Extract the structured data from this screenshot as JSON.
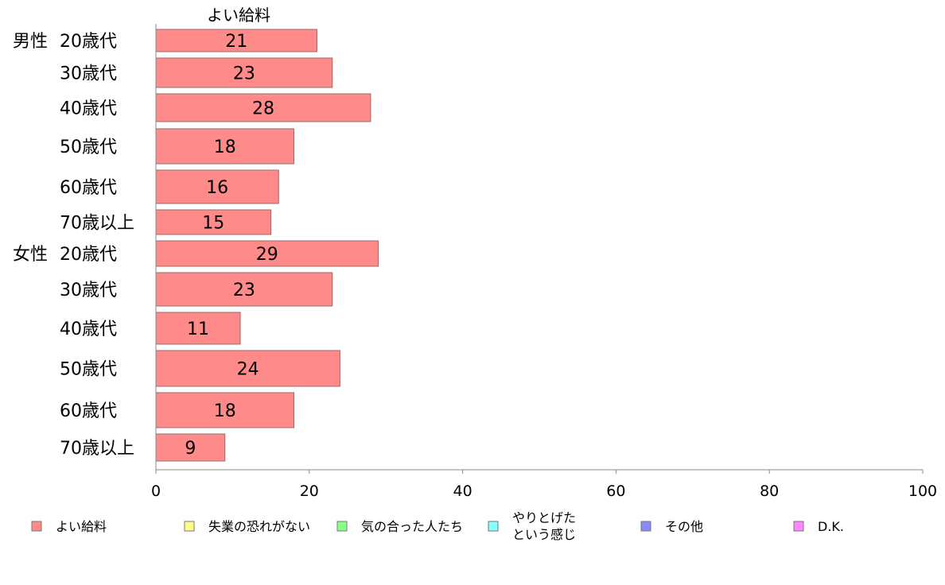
{
  "chart_data": {
    "type": "bar",
    "orientation": "horizontal",
    "title": "",
    "xlim": [
      0,
      100
    ],
    "x_ticks": [
      0,
      20,
      40,
      60,
      80,
      100
    ],
    "grid": false,
    "legend_position": "bottom",
    "series_header": "よい給料",
    "categories": [
      {
        "group": "男性",
        "age": "20歳代",
        "value": 21
      },
      {
        "group": "",
        "age": "30歳代",
        "value": 23
      },
      {
        "group": "",
        "age": "40歳代",
        "value": 28
      },
      {
        "group": "",
        "age": "50歳代",
        "value": 18
      },
      {
        "group": "",
        "age": "60歳代",
        "value": 16
      },
      {
        "group": "",
        "age": "70歳以上",
        "value": 15
      },
      {
        "group": "女性",
        "age": "20歳代",
        "value": 29
      },
      {
        "group": "",
        "age": "30歳代",
        "value": 23
      },
      {
        "group": "",
        "age": "40歳代",
        "value": 11
      },
      {
        "group": "",
        "age": "50歳代",
        "value": 24
      },
      {
        "group": "",
        "age": "60歳代",
        "value": 18
      },
      {
        "group": "",
        "age": "70歳以上",
        "value": 9
      }
    ],
    "series": [
      {
        "name": "よい給料",
        "color": "#ff8a8a"
      },
      {
        "name": "失業の恐れがない",
        "color": "#ffff88"
      },
      {
        "name": "気の合った人たち",
        "color": "#88ff88"
      },
      {
        "name": "やりとげた\nという感じ",
        "color": "#88ffff"
      },
      {
        "name": "その他",
        "color": "#8888ff"
      },
      {
        "name": "D.K.",
        "color": "#ff88ff"
      }
    ]
  }
}
